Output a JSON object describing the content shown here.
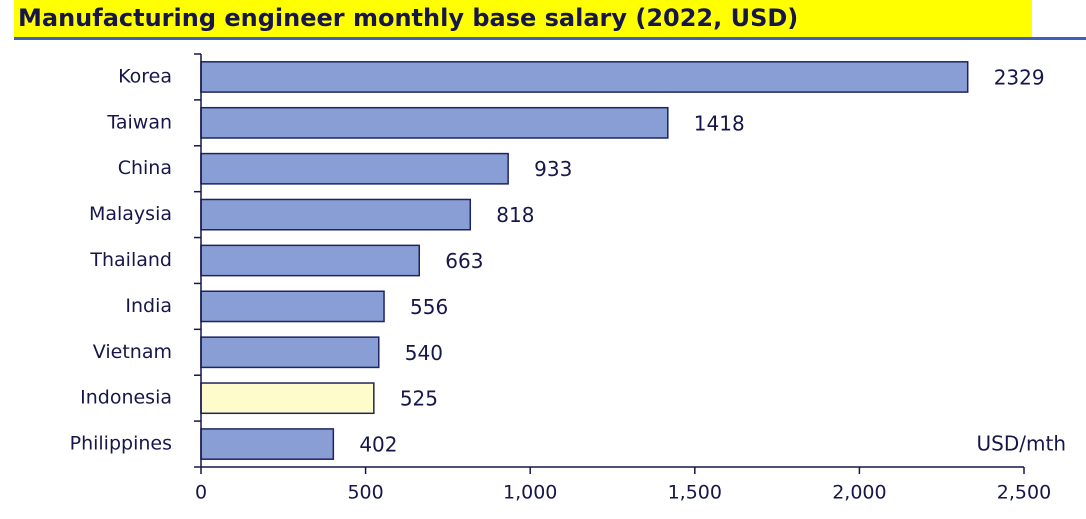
{
  "chart_data": {
    "type": "bar",
    "orientation": "horizontal",
    "title": "Manufacturing engineer monthly base salary (2022, USD)",
    "annotation": "USD/mth",
    "categories": [
      "Korea",
      "Taiwan",
      "China",
      "Malaysia",
      "Thailand",
      "India",
      "Vietnam",
      "Indonesia",
      "Philippines"
    ],
    "values": [
      2329,
      1418,
      933,
      818,
      663,
      556,
      540,
      525,
      402
    ],
    "colors": [
      "#8a9ed6",
      "#8a9ed6",
      "#8a9ed6",
      "#8a9ed6",
      "#8a9ed6",
      "#8a9ed6",
      "#8a9ed6",
      "#fffccc",
      "#8a9ed6"
    ],
    "xlim": [
      0,
      2500
    ],
    "xticks": [
      0,
      500,
      {
        "value": 1000,
        "label": "1,000"
      },
      {
        "value": 1500,
        "label": "1,500"
      },
      {
        "value": 2000,
        "label": "2,000"
      },
      {
        "value": 2500,
        "label": "2,500"
      }
    ],
    "grid": false
  }
}
